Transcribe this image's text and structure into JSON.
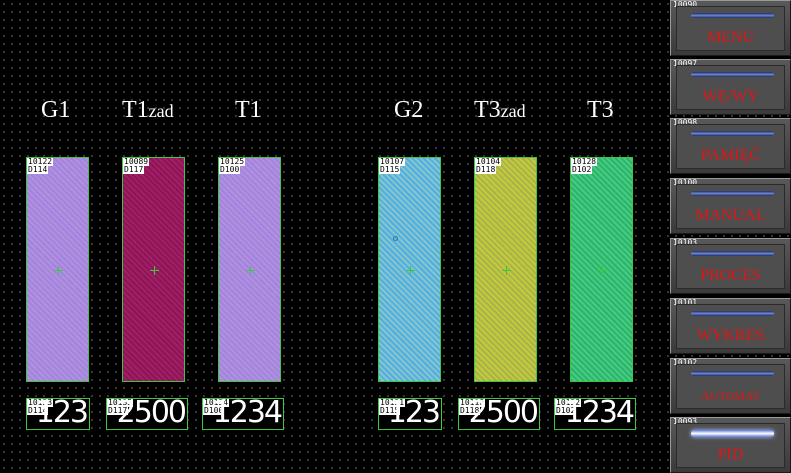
{
  "labels": [
    {
      "main": "G1",
      "sub": ""
    },
    {
      "main": "T1",
      "sub": "zad"
    },
    {
      "main": "T1",
      "sub": ""
    },
    {
      "main": "G2",
      "sub": ""
    },
    {
      "main": "T3",
      "sub": "zad"
    },
    {
      "main": "T3",
      "sub": ""
    }
  ],
  "bars": [
    {
      "tag1": "10122",
      "tag2": "D114",
      "color": "#a98ae0"
    },
    {
      "tag1": "10089",
      "tag2": "D117",
      "color": "#8e1a5c"
    },
    {
      "tag1": "10125",
      "tag2": "D100",
      "color": "#a98ae0"
    },
    {
      "tag1": "10107",
      "tag2": "D115",
      "color": "#5aaee0"
    },
    {
      "tag1": "10104",
      "tag2": "D118",
      "color": "#c0c23e"
    },
    {
      "tag1": "10128",
      "tag2": "D102",
      "color": "#38c075"
    }
  ],
  "values": [
    {
      "tag1": "10133",
      "tag2": "D114",
      "value": "123"
    },
    {
      "tag1": "10135",
      "tag2": "D117",
      "value": "2500"
    },
    {
      "tag1": "10134",
      "tag2": "D100",
      "value": "1234"
    },
    {
      "tag1": "10131",
      "tag2": "D115",
      "value": "123"
    },
    {
      "tag1": "10116",
      "tag2": "D118",
      "value": "2500"
    },
    {
      "tag1": "10132",
      "tag2": "D102",
      "value": "1234"
    }
  ],
  "menu": [
    {
      "id": "10090",
      "label": "MENU",
      "active": false
    },
    {
      "id": "10097",
      "label": "WE/WY",
      "active": false
    },
    {
      "id": "10098",
      "label": "PAMIĘĆ",
      "active": false
    },
    {
      "id": "10100",
      "label": "MANUAL",
      "active": false
    },
    {
      "id": "10103",
      "label": "PROCES",
      "active": false
    },
    {
      "id": "10101",
      "label": "WYKRES",
      "active": false
    },
    {
      "id": "10102",
      "label": "AUTOMAT",
      "active": false
    },
    {
      "id": "10093",
      "label": "PID",
      "active": true
    }
  ]
}
